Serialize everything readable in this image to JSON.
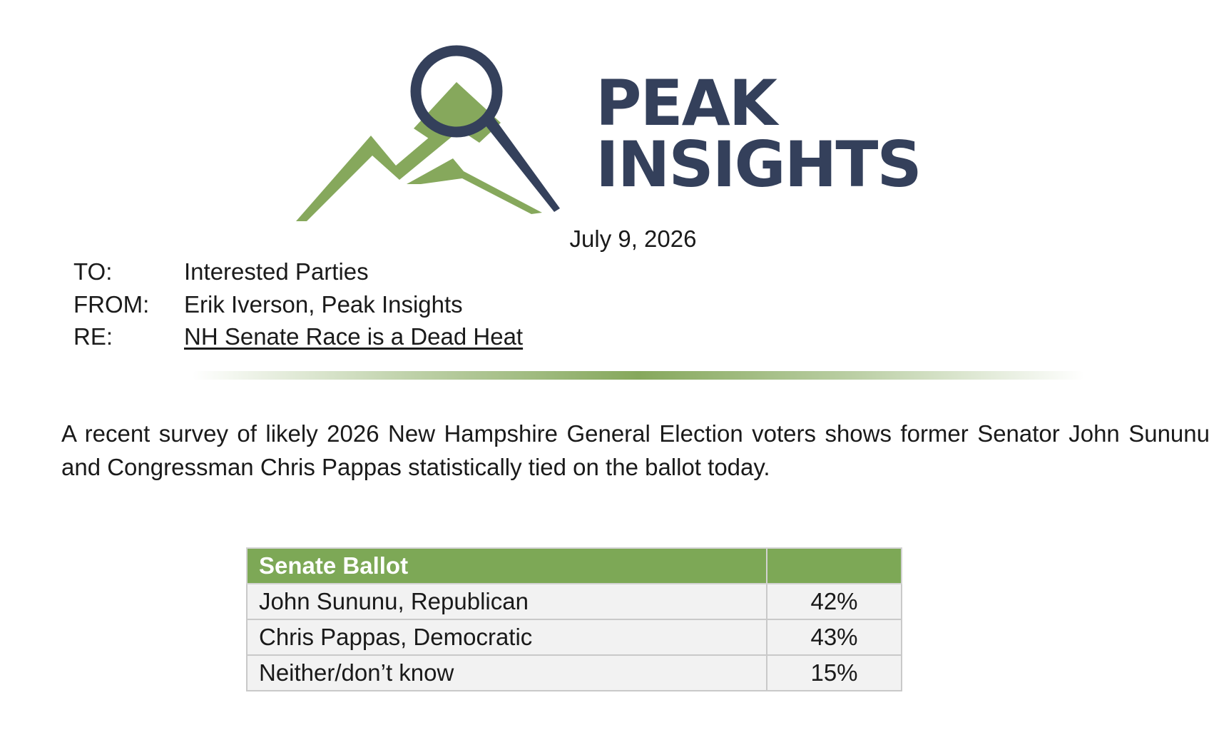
{
  "logo": {
    "line1": "PEAK",
    "line2": "INSIGHTS",
    "brand_navy": "#34405b",
    "brand_green": "#86a85c"
  },
  "date": "July 9, 2026",
  "memo": {
    "to_label": "TO:",
    "to_value": "Interested Parties",
    "from_label": "FROM:",
    "from_value": "Erik Iverson, Peak Insights",
    "re_label": "RE:",
    "re_value": "NH Senate Race is a Dead Heat"
  },
  "intro": "A recent survey of likely 2026 New Hampshire General Election voters shows former Senator John Sununu and Congressman Chris Pappas statistically tied on the ballot today.",
  "table": {
    "header": "Senate Ballot",
    "header_value": "",
    "rows": [
      {
        "label": "John Sununu, Republican",
        "value": "42%"
      },
      {
        "label": "Chris Pappas, Democratic",
        "value": "43%"
      },
      {
        "label": "Neither/don’t know",
        "value": "15%"
      }
    ]
  }
}
